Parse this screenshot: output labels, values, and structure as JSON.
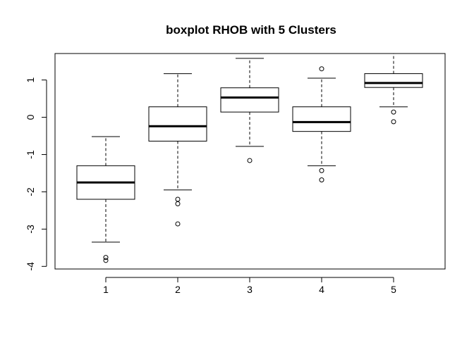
{
  "chart_data": {
    "type": "boxplot",
    "title": "boxplot RHOB with 5 Clusters",
    "xlabel": "",
    "ylabel": "",
    "categories": [
      "1",
      "2",
      "3",
      "4",
      "5"
    ],
    "yticks": [
      -4,
      -3,
      -2,
      -1,
      0,
      1
    ],
    "ylim": [
      -4.07,
      1.71
    ],
    "grid": false,
    "boxes": [
      {
        "category": "1",
        "whisker_low": -3.35,
        "q1": -2.2,
        "median": -1.75,
        "q3": -1.3,
        "whisker_high": -0.52,
        "outliers": [
          -3.76,
          -3.84
        ]
      },
      {
        "category": "2",
        "whisker_low": -1.95,
        "q1": -0.64,
        "median": -0.24,
        "q3": 0.28,
        "whisker_high": 1.17,
        "outliers": [
          -2.2,
          -2.32,
          -2.86
        ]
      },
      {
        "category": "3",
        "whisker_low": -0.78,
        "q1": 0.14,
        "median": 0.53,
        "q3": 0.79,
        "whisker_high": 1.58,
        "outliers": [
          -1.16
        ]
      },
      {
        "category": "4",
        "whisker_low": -1.3,
        "q1": -0.38,
        "median": -0.13,
        "q3": 0.28,
        "whisker_high": 1.05,
        "outliers": [
          -1.43,
          -1.68,
          1.3
        ]
      },
      {
        "category": "5",
        "whisker_low": 0.28,
        "q1": 0.8,
        "median": 0.92,
        "q3": 1.17,
        "whisker_high": 1.71,
        "outliers": [
          0.14,
          -0.12
        ]
      }
    ]
  }
}
